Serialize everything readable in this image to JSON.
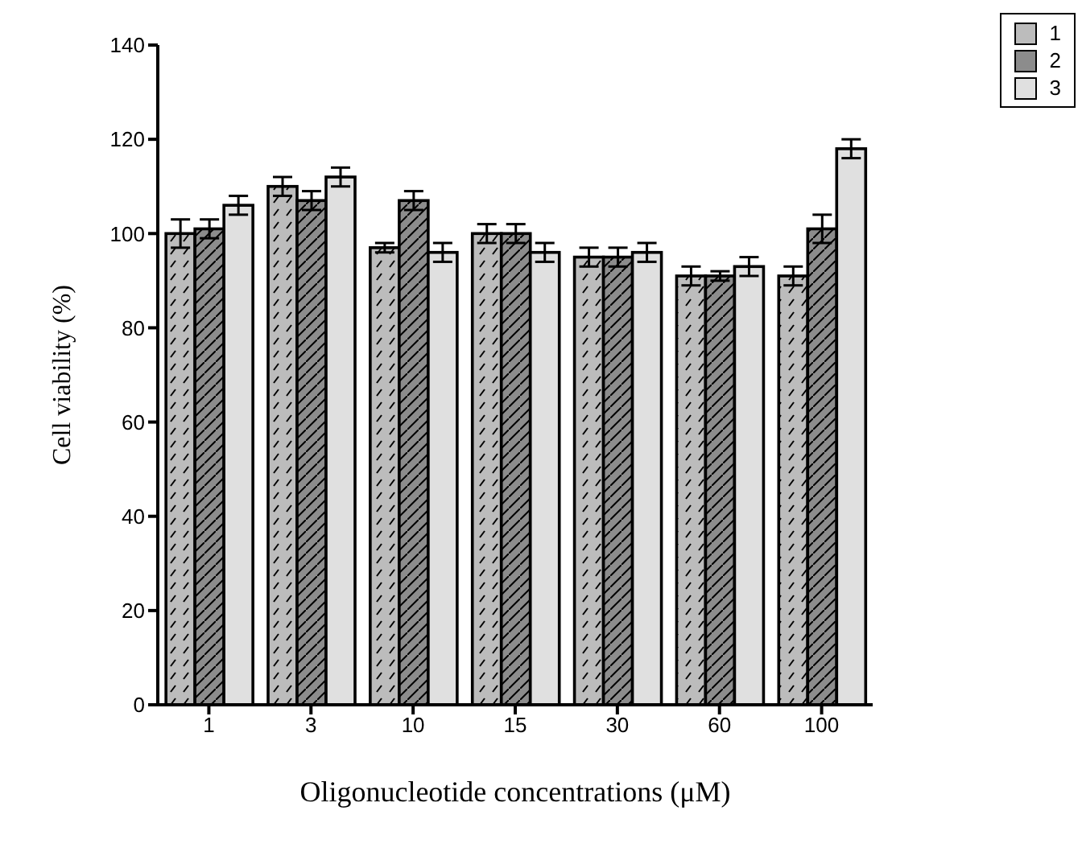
{
  "chart_data": {
    "type": "bar",
    "xlabel": "Oligonucleotide concentrations (μM)",
    "ylabel": "Cell viability (%)",
    "categories": [
      "1",
      "3",
      "10",
      "15",
      "30",
      "60",
      "100"
    ],
    "series": [
      {
        "name": "1",
        "color": "#bcbcbc",
        "values": [
          100,
          110,
          97,
          100,
          95,
          91,
          91
        ],
        "errors": [
          3,
          2,
          1,
          2,
          2,
          2,
          2
        ]
      },
      {
        "name": "2",
        "color": "#8c8c8c",
        "values": [
          101,
          107,
          107,
          100,
          95,
          91,
          101
        ],
        "errors": [
          2,
          2,
          2,
          2,
          2,
          1,
          3
        ]
      },
      {
        "name": "3",
        "color": "#e0e0e0",
        "values": [
          106,
          112,
          96,
          96,
          96,
          93,
          118
        ],
        "errors": [
          2,
          2,
          2,
          2,
          2,
          2,
          2
        ]
      }
    ],
    "ylim": [
      0,
      140
    ],
    "yticks": [
      0,
      20,
      40,
      60,
      80,
      100,
      120,
      140
    ],
    "grid": false,
    "legend": "top right"
  }
}
